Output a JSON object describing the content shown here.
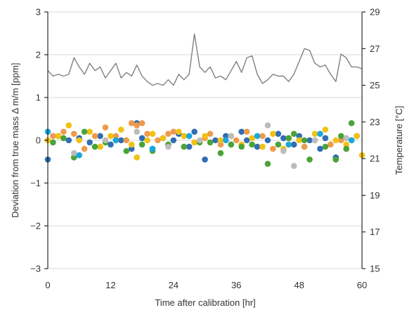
{
  "chart_data": {
    "type": "scatter",
    "title": "",
    "xlabel": "Time after calibration [hr]",
    "ylabel": "Deviation from true mass Δ m/m [ppm]",
    "y2label": "Temperature [°C]",
    "xlim": [
      0,
      60
    ],
    "ylim": [
      -3,
      3
    ],
    "y2lim": [
      15,
      29
    ],
    "xticks": [
      0,
      12,
      24,
      36,
      48,
      60
    ],
    "yticks": [
      -3,
      -2,
      -1,
      0,
      1,
      2,
      3
    ],
    "y2ticks": [
      15,
      17,
      19,
      21,
      23,
      25,
      27,
      29
    ],
    "grid": "horizontal",
    "legend": "none",
    "colors": {
      "temperature": "#808080",
      "blue": "#2f6eb5",
      "orange": "#ee9a4d",
      "yellow": "#f2c114",
      "green": "#4aa337",
      "gray": "#bcbcbc",
      "cyan": "#1aa7de"
    },
    "temperature": {
      "x": [
        0,
        1,
        2,
        3,
        4,
        5,
        6,
        7,
        8,
        9,
        10,
        11,
        12,
        13,
        14,
        15,
        16,
        17,
        18,
        19,
        20,
        21,
        22,
        23,
        24,
        25,
        26,
        27,
        28,
        29,
        30,
        31,
        32,
        33,
        34,
        35,
        36,
        37,
        38,
        39,
        40,
        41,
        42,
        43,
        44,
        45,
        46,
        47,
        48,
        49,
        50,
        51,
        52,
        53,
        54,
        55,
        56,
        57,
        58,
        59,
        60
      ],
      "y": [
        25.8,
        25.5,
        25.6,
        25.5,
        25.6,
        26.5,
        26.0,
        25.6,
        26.2,
        25.8,
        26.0,
        25.4,
        25.8,
        26.2,
        25.4,
        25.7,
        25.5,
        26.1,
        25.5,
        25.2,
        25.0,
        25.1,
        25.0,
        25.3,
        25.0,
        25.6,
        25.3,
        25.6,
        27.8,
        26.0,
        25.7,
        26.0,
        25.4,
        25.5,
        25.3,
        25.8,
        26.3,
        25.7,
        26.5,
        26.6,
        25.6,
        25.1,
        25.3,
        25.6,
        25.5,
        25.5,
        25.2,
        25.6,
        26.3,
        27.0,
        26.9,
        26.2,
        26.0,
        26.1,
        25.6,
        25.2,
        26.7,
        26.5,
        26.0,
        26.0,
        25.9
      ]
    },
    "series": [
      {
        "color": "blue",
        "x": [
          0,
          2,
          4,
          6,
          8,
          10,
          12,
          14,
          16,
          17,
          18,
          20,
          22,
          24,
          25,
          27,
          28,
          30,
          32,
          34,
          35,
          37,
          38,
          40,
          42,
          44,
          45,
          47,
          48,
          50,
          52,
          53,
          55,
          58,
          59
        ],
        "y": [
          -0.45,
          0.1,
          0.0,
          0.05,
          -0.05,
          0.1,
          -0.1,
          0.0,
          -0.2,
          0.4,
          0.05,
          -0.2,
          0.05,
          0.0,
          0.15,
          -0.15,
          0.2,
          -0.45,
          0.0,
          0.1,
          -0.1,
          0.2,
          0.0,
          -0.15,
          0.0,
          0.15,
          0.05,
          -0.1,
          0.1,
          0.0,
          -0.2,
          0.05,
          -0.4,
          0.0,
          0.1
        ]
      },
      {
        "color": "orange",
        "x": [
          1,
          3,
          5,
          7,
          9,
          11,
          13,
          15,
          16,
          17,
          18,
          19,
          21,
          23,
          24,
          26,
          28,
          30,
          31,
          33,
          36,
          38,
          41,
          43,
          46,
          49,
          52,
          54,
          56,
          57
        ],
        "y": [
          0.1,
          0.2,
          0.15,
          -0.2,
          0.1,
          0.3,
          0.1,
          0.0,
          0.4,
          0.35,
          0.4,
          0.15,
          0.0,
          0.15,
          0.2,
          0.1,
          -0.05,
          0.05,
          0.15,
          -0.1,
          0.0,
          0.2,
          0.1,
          -0.2,
          0.05,
          -0.15,
          0.15,
          -0.1,
          0.0,
          -0.2
        ]
      },
      {
        "color": "yellow",
        "x": [
          0,
          2,
          4,
          6,
          8,
          10,
          12,
          14,
          16,
          17,
          19,
          20,
          22,
          25,
          26,
          28,
          30,
          33,
          35,
          37,
          39,
          41,
          43,
          45,
          48,
          51,
          53,
          55,
          57,
          59,
          60
        ],
        "y": [
          0.0,
          0.1,
          0.35,
          0.0,
          0.2,
          -0.15,
          0.1,
          0.25,
          -0.1,
          -0.4,
          0.0,
          0.15,
          0.05,
          0.2,
          0.1,
          -0.05,
          0.1,
          0.0,
          0.1,
          -0.1,
          0.05,
          -0.15,
          0.15,
          -0.2,
          0.0,
          0.15,
          0.25,
          0.0,
          -0.1,
          0.1,
          -0.35
        ]
      },
      {
        "color": "green",
        "x": [
          1,
          3,
          5,
          7,
          9,
          11,
          13,
          15,
          18,
          20,
          23,
          26,
          29,
          31,
          33,
          35,
          37,
          39,
          42,
          44,
          46,
          47,
          49,
          50,
          51,
          53,
          55,
          56,
          57,
          58
        ],
        "y": [
          -0.05,
          0.05,
          -0.4,
          0.2,
          -0.15,
          -0.05,
          0.0,
          -0.25,
          -0.1,
          -0.25,
          -0.1,
          -0.15,
          -0.05,
          -0.05,
          -0.3,
          -0.1,
          -0.15,
          -0.1,
          -0.55,
          -0.1,
          0.05,
          0.15,
          0.0,
          -0.45,
          0.0,
          -0.15,
          -0.45,
          0.1,
          -0.2,
          0.4
        ]
      },
      {
        "color": "gray",
        "x": [
          5,
          11,
          17,
          23,
          29,
          35,
          42,
          45,
          47,
          51,
          57
        ],
        "y": [
          -0.3,
          0.0,
          0.2,
          -0.15,
          0.0,
          0.1,
          0.35,
          -0.25,
          -0.6,
          0.0,
          0.05
        ]
      },
      {
        "color": "cyan",
        "x": [
          0,
          6,
          13,
          20,
          27,
          34,
          40,
          46,
          52,
          58
        ],
        "y": [
          0.2,
          -0.35,
          0.0,
          -0.2,
          0.1,
          0.0,
          0.1,
          -0.1,
          0.15,
          0.0
        ]
      }
    ]
  }
}
